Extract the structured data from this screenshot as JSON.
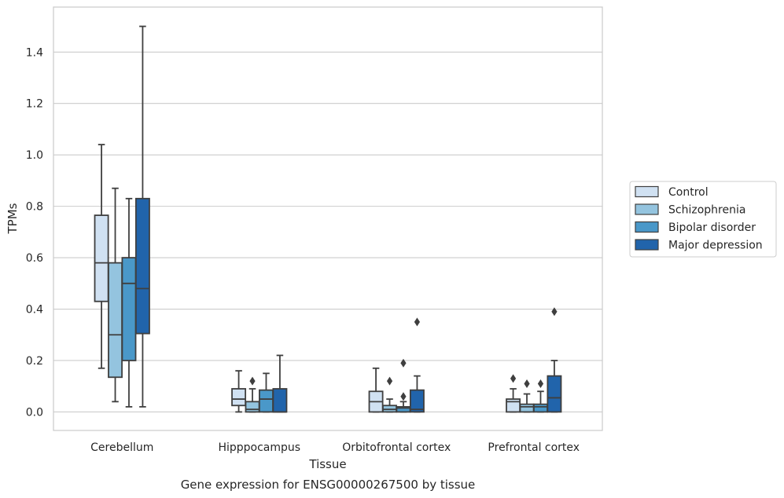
{
  "chart_data": {
    "type": "box",
    "title": "",
    "caption": "Gene expression for ENSG00000267500 by tissue",
    "xlabel": "Tissue",
    "ylabel": "TPMs",
    "ylim": [
      -0.072,
      1.575
    ],
    "yticks": [
      "0.0",
      "0.2",
      "0.4",
      "0.6",
      "0.8",
      "1.0",
      "1.2",
      "1.4"
    ],
    "grid": "horizontal",
    "legend_position": "right",
    "categories": [
      "Cerebellum",
      "Hipppocampus",
      "Orbitofrontal cortex",
      "Prefrontal cortex"
    ],
    "series": [
      {
        "name": "Control",
        "color": "#d0e1f2",
        "boxes": [
          {
            "whislo": 0.17,
            "q1": 0.43,
            "med": 0.58,
            "q3": 0.765,
            "whishi": 1.04,
            "fliers": []
          },
          {
            "whislo": 0.0,
            "q1": 0.025,
            "med": 0.05,
            "q3": 0.09,
            "whishi": 0.16,
            "fliers": []
          },
          {
            "whislo": 0.0,
            "q1": 0.0,
            "med": 0.04,
            "q3": 0.08,
            "whishi": 0.17,
            "fliers": []
          },
          {
            "whislo": 0.0,
            "q1": 0.0,
            "med": 0.04,
            "q3": 0.05,
            "whishi": 0.09,
            "fliers": [
              0.13
            ]
          }
        ]
      },
      {
        "name": "Schizophrenia",
        "color": "#94c4df",
        "boxes": [
          {
            "whislo": 0.04,
            "q1": 0.135,
            "med": 0.3,
            "q3": 0.58,
            "whishi": 0.87,
            "fliers": []
          },
          {
            "whislo": 0.0,
            "q1": 0.0,
            "med": 0.01,
            "q3": 0.04,
            "whishi": 0.09,
            "fliers": [
              0.12
            ]
          },
          {
            "whislo": 0.0,
            "q1": 0.0,
            "med": 0.01,
            "q3": 0.025,
            "whishi": 0.05,
            "fliers": [
              0.12
            ]
          },
          {
            "whislo": 0.0,
            "q1": 0.0,
            "med": 0.02,
            "q3": 0.03,
            "whishi": 0.07,
            "fliers": [
              0.11
            ]
          }
        ]
      },
      {
        "name": "Bipolar disorder",
        "color": "#4a98c9",
        "boxes": [
          {
            "whislo": 0.02,
            "q1": 0.2,
            "med": 0.5,
            "q3": 0.6,
            "whishi": 0.83,
            "fliers": []
          },
          {
            "whislo": 0.0,
            "q1": 0.0,
            "med": 0.05,
            "q3": 0.085,
            "whishi": 0.15,
            "fliers": []
          },
          {
            "whislo": 0.0,
            "q1": 0.0,
            "med": 0.015,
            "q3": 0.02,
            "whishi": 0.04,
            "fliers": [
              0.06,
              0.19
            ]
          },
          {
            "whislo": 0.0,
            "q1": 0.0,
            "med": 0.02,
            "q3": 0.03,
            "whishi": 0.08,
            "fliers": [
              0.11
            ]
          }
        ]
      },
      {
        "name": "Major depression",
        "color": "#2164ab",
        "boxes": [
          {
            "whislo": 0.02,
            "q1": 0.305,
            "med": 0.48,
            "q3": 0.83,
            "whishi": 1.5,
            "fliers": []
          },
          {
            "whislo": 0.0,
            "q1": 0.0,
            "med": 0.0,
            "q3": 0.09,
            "whishi": 0.22,
            "fliers": []
          },
          {
            "whislo": 0.0,
            "q1": 0.0,
            "med": 0.01,
            "q3": 0.085,
            "whishi": 0.14,
            "fliers": [
              0.35
            ]
          },
          {
            "whislo": 0.0,
            "q1": 0.0,
            "med": 0.055,
            "q3": 0.14,
            "whishi": 0.2,
            "fliers": [
              0.39
            ]
          }
        ]
      }
    ]
  }
}
